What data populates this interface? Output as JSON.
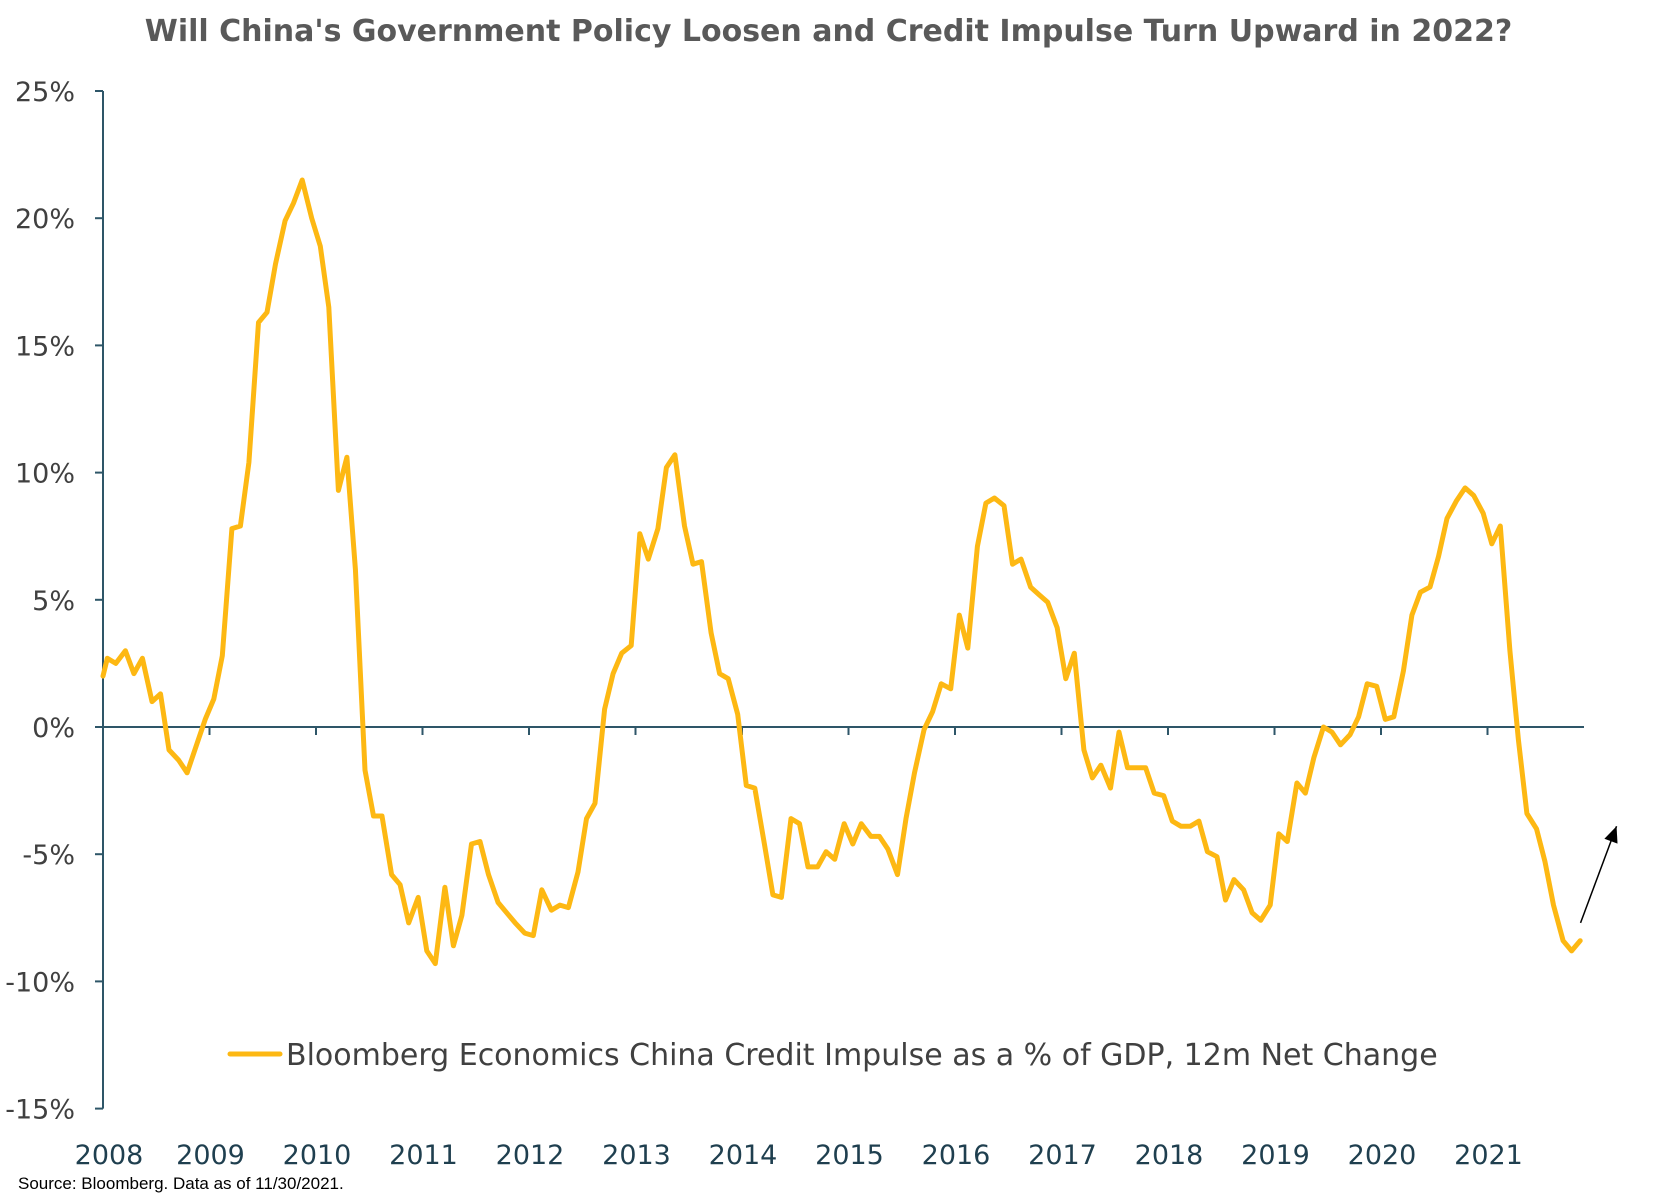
{
  "chart_data": {
    "type": "line",
    "title": "Will China's Government Policy Loosen and Credit Impulse Turn Upward in 2022?",
    "xlabel": "",
    "ylabel": "",
    "ylim": [
      -15,
      25
    ],
    "xlim": [
      2008.0,
      2021.93
    ],
    "y_ticks": [
      "-15%",
      "-10%",
      "-5%",
      "0%",
      "5%",
      "10%",
      "15%",
      "20%",
      "25%"
    ],
    "x_ticks": [
      "2008",
      "2009",
      "2010",
      "2011",
      "2012",
      "2013",
      "2014",
      "2015",
      "2016",
      "2017",
      "2018",
      "2019",
      "2020",
      "2021"
    ],
    "legend_position": "bottom",
    "grid": false,
    "colors": {
      "series": "#FDB813",
      "axis": "#2e5668",
      "arrow": "#000000"
    },
    "annotation": "upward arrow at end of series",
    "series": [
      {
        "name": "Bloomberg Economics China Credit Impulse as a % of GDP, 12m Net Change",
        "x": [
          2008.0,
          2008.04,
          2008.12,
          2008.21,
          2008.29,
          2008.37,
          2008.46,
          2008.54,
          2008.62,
          2008.71,
          2008.79,
          2008.87,
          2008.96,
          2009.04,
          2009.12,
          2009.21,
          2009.29,
          2009.37,
          2009.46,
          2009.54,
          2009.62,
          2009.71,
          2009.79,
          2009.87,
          2009.96,
          2010.04,
          2010.12,
          2010.21,
          2010.29,
          2010.37,
          2010.46,
          2010.54,
          2010.62,
          2010.71,
          2010.79,
          2010.87,
          2010.96,
          2011.04,
          2011.12,
          2011.21,
          2011.29,
          2011.37,
          2011.46,
          2011.54,
          2011.62,
          2011.71,
          2011.79,
          2011.87,
          2011.96,
          2012.04,
          2012.12,
          2012.21,
          2012.29,
          2012.37,
          2012.46,
          2012.54,
          2012.62,
          2012.71,
          2012.79,
          2012.87,
          2012.96,
          2013.04,
          2013.12,
          2013.21,
          2013.29,
          2013.37,
          2013.46,
          2013.54,
          2013.62,
          2013.71,
          2013.79,
          2013.87,
          2013.96,
          2014.04,
          2014.12,
          2014.21,
          2014.29,
          2014.37,
          2014.46,
          2014.54,
          2014.62,
          2014.71,
          2014.79,
          2014.87,
          2014.96,
          2015.04,
          2015.12,
          2015.21,
          2015.29,
          2015.37,
          2015.46,
          2015.54,
          2015.62,
          2015.71,
          2015.79,
          2015.87,
          2015.96,
          2016.04,
          2016.12,
          2016.21,
          2016.29,
          2016.37,
          2016.46,
          2016.54,
          2016.62,
          2016.71,
          2016.79,
          2016.87,
          2016.96,
          2017.04,
          2017.12,
          2017.21,
          2017.29,
          2017.37,
          2017.46,
          2017.54,
          2017.62,
          2017.71,
          2017.79,
          2017.87,
          2017.96,
          2018.04,
          2018.12,
          2018.21,
          2018.29,
          2018.37,
          2018.46,
          2018.54,
          2018.62,
          2018.71,
          2018.79,
          2018.87,
          2018.96,
          2019.04,
          2019.12,
          2019.21,
          2019.29,
          2019.37,
          2019.46,
          2019.54,
          2019.62,
          2019.71,
          2019.79,
          2019.87,
          2019.96,
          2020.04,
          2020.12,
          2020.21,
          2020.29,
          2020.37,
          2020.46,
          2020.54,
          2020.62,
          2020.71,
          2020.79,
          2020.87,
          2020.96,
          2021.04,
          2021.12,
          2021.21,
          2021.29,
          2021.37,
          2021.46,
          2021.54,
          2021.62,
          2021.71,
          2021.79,
          2021.87
        ],
        "values": [
          2.0,
          2.7,
          2.5,
          3.0,
          2.1,
          2.7,
          1.0,
          1.3,
          -0.9,
          -1.3,
          -1.8,
          -0.8,
          0.3,
          1.1,
          2.8,
          7.8,
          7.9,
          10.4,
          15.9,
          16.3,
          18.2,
          19.9,
          20.6,
          21.5,
          20.0,
          18.9,
          16.5,
          9.3,
          10.6,
          6.2,
          -1.7,
          -3.5,
          -3.5,
          -5.8,
          -6.2,
          -7.7,
          -6.7,
          -8.8,
          -9.3,
          -6.3,
          -8.6,
          -7.4,
          -4.6,
          -4.5,
          -5.8,
          -6.9,
          -7.3,
          -7.7,
          -8.1,
          -8.2,
          -6.4,
          -7.2,
          -7.0,
          -7.1,
          -5.7,
          -3.6,
          -3.0,
          0.7,
          2.1,
          2.9,
          3.2,
          7.6,
          6.6,
          7.8,
          10.2,
          10.7,
          7.9,
          6.4,
          6.5,
          3.7,
          2.1,
          1.9,
          0.5,
          -2.3,
          -2.4,
          -4.6,
          -6.6,
          -6.7,
          -3.6,
          -3.8,
          -5.5,
          -5.5,
          -4.9,
          -5.2,
          -3.8,
          -4.6,
          -3.8,
          -4.3,
          -4.3,
          -4.8,
          -5.8,
          -3.6,
          -1.8,
          -0.1,
          0.6,
          1.7,
          1.5,
          4.4,
          3.1,
          7.1,
          8.8,
          9.0,
          8.7,
          6.4,
          6.6,
          5.5,
          5.2,
          4.9,
          3.9,
          1.9,
          2.9,
          -0.9,
          -2.0,
          -1.5,
          -2.4,
          -0.2,
          -1.6,
          -1.6,
          -1.6,
          -2.6,
          -2.7,
          -3.7,
          -3.9,
          -3.9,
          -3.7,
          -4.9,
          -5.1,
          -6.8,
          -6.0,
          -6.4,
          -7.3,
          -7.6,
          -7.0,
          -4.2,
          -4.5,
          -2.2,
          -2.6,
          -1.2,
          0.0,
          -0.2,
          -0.7,
          -0.3,
          0.4,
          1.7,
          1.6,
          0.3,
          0.4,
          2.2,
          4.4,
          5.3,
          5.5,
          6.7,
          8.2,
          8.9,
          9.4,
          9.1,
          8.4,
          7.2,
          7.9,
          3.0,
          -0.5,
          -3.4,
          -4.0,
          -5.3,
          -7.0,
          -8.4,
          -8.8,
          -8.4
        ]
      }
    ],
    "note": "Source: Bloomberg. Data as of 11/30/2021."
  }
}
